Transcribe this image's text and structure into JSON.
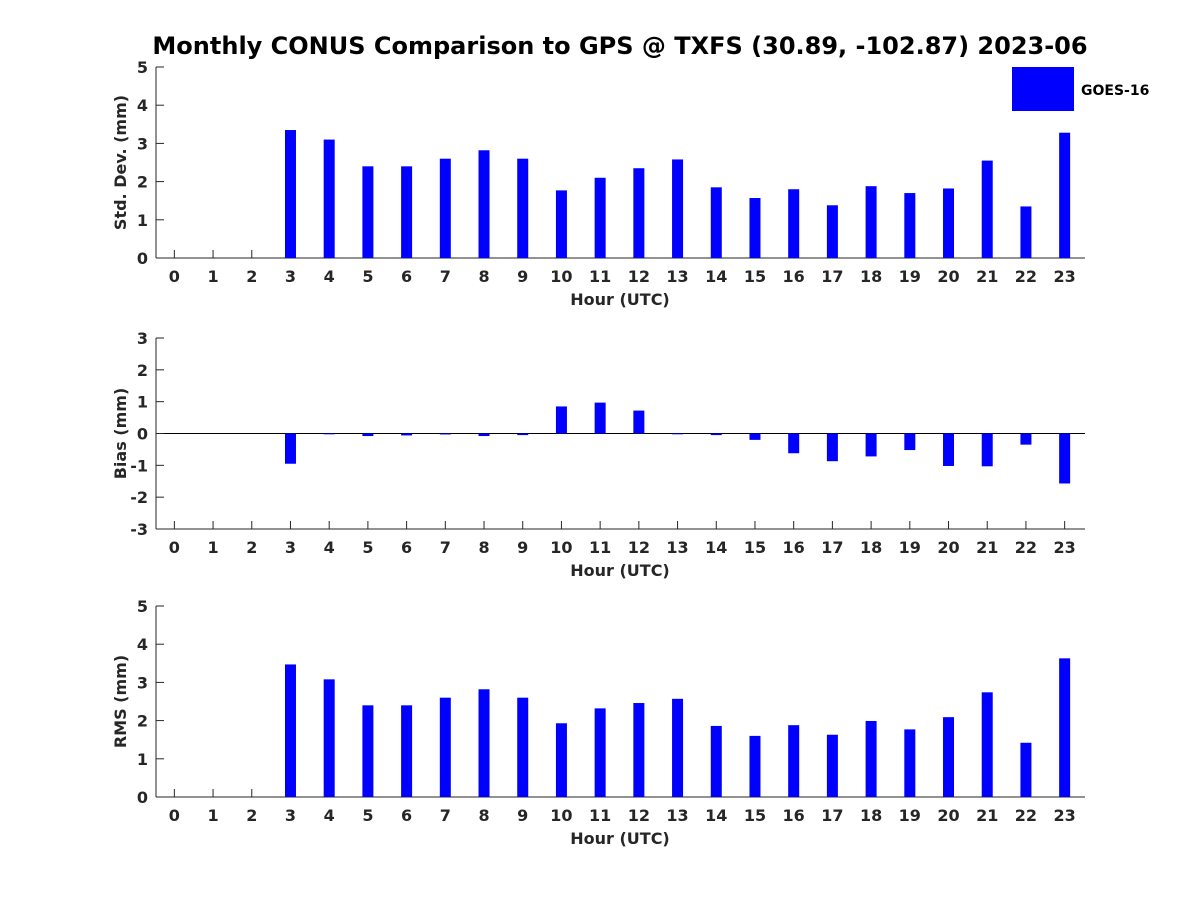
{
  "chart_data": {
    "type": "bar",
    "title": "Monthly CONUS Comparison to GPS @ TXFS (30.89, -102.87) 2023-06",
    "legend": {
      "label": "GOES-16",
      "position": "top-right",
      "color": "#0000ff"
    },
    "categories": [
      "0",
      "1",
      "2",
      "3",
      "4",
      "5",
      "6",
      "7",
      "8",
      "9",
      "10",
      "11",
      "12",
      "13",
      "14",
      "15",
      "16",
      "17",
      "18",
      "19",
      "20",
      "21",
      "22",
      "23"
    ],
    "panels": [
      {
        "name": "std-dev",
        "ylabel": "Std. Dev. (mm)",
        "xlabel": "Hour (UTC)",
        "ylim": [
          0,
          5
        ],
        "yticks": [
          0,
          1,
          2,
          3,
          4,
          5
        ],
        "values": [
          null,
          null,
          null,
          3.35,
          3.1,
          2.4,
          2.4,
          2.6,
          2.82,
          2.6,
          1.77,
          2.1,
          2.35,
          2.58,
          1.85,
          1.57,
          1.8,
          1.38,
          1.88,
          1.7,
          1.82,
          2.55,
          1.35,
          3.28
        ]
      },
      {
        "name": "bias",
        "ylabel": "Bias (mm)",
        "xlabel": "Hour (UTC)",
        "ylim": [
          -3,
          3
        ],
        "yticks": [
          -3,
          -2,
          -1,
          0,
          1,
          2,
          3
        ],
        "values": [
          null,
          null,
          null,
          -0.95,
          -0.02,
          -0.08,
          -0.06,
          -0.03,
          -0.08,
          -0.05,
          0.85,
          0.97,
          0.72,
          0.0,
          -0.05,
          -0.2,
          -0.62,
          -0.87,
          -0.72,
          -0.52,
          -1.02,
          -1.03,
          -0.35,
          -1.57
        ]
      },
      {
        "name": "rms",
        "ylabel": "RMS (mm)",
        "xlabel": "Hour (UTC)",
        "ylim": [
          0,
          5
        ],
        "yticks": [
          0,
          1,
          2,
          3,
          4,
          5
        ],
        "values": [
          null,
          null,
          null,
          3.47,
          3.08,
          2.4,
          2.4,
          2.6,
          2.82,
          2.6,
          1.93,
          2.32,
          2.46,
          2.57,
          1.86,
          1.6,
          1.88,
          1.63,
          1.99,
          1.77,
          2.09,
          2.74,
          1.42,
          3.63
        ]
      }
    ]
  }
}
